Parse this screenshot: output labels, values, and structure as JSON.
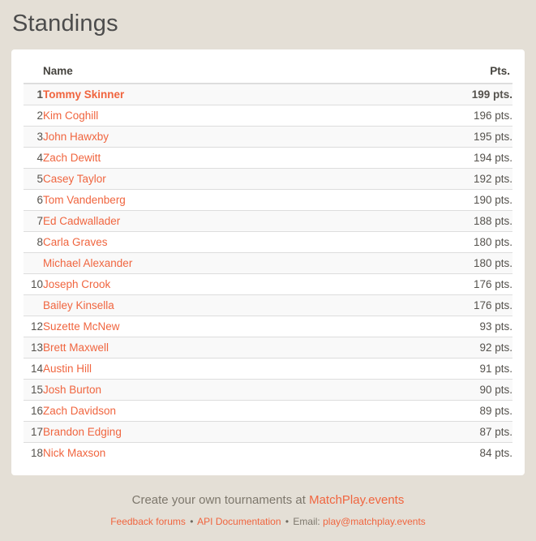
{
  "page": {
    "title": "Standings",
    "background_color": "#e4dfd6",
    "accent_color": "#f0653f"
  },
  "table": {
    "headers": {
      "name": "Name",
      "pts": "Pts."
    },
    "rows": [
      {
        "rank": "1",
        "name": "Tommy Skinner",
        "pts": "199 pts.",
        "bold": true
      },
      {
        "rank": "2",
        "name": "Kim Coghill",
        "pts": "196 pts."
      },
      {
        "rank": "3",
        "name": "John Hawxby",
        "pts": "195 pts."
      },
      {
        "rank": "4",
        "name": "Zach Dewitt",
        "pts": "194 pts."
      },
      {
        "rank": "5",
        "name": "Casey Taylor",
        "pts": "192 pts."
      },
      {
        "rank": "6",
        "name": "Tom Vandenberg",
        "pts": "190 pts."
      },
      {
        "rank": "7",
        "name": "Ed Cadwallader",
        "pts": "188 pts."
      },
      {
        "rank": "8",
        "name": "Carla Graves",
        "pts": "180 pts."
      },
      {
        "rank": "",
        "name": "Michael Alexander",
        "pts": "180 pts."
      },
      {
        "rank": "10",
        "name": "Joseph Crook",
        "pts": "176 pts."
      },
      {
        "rank": "",
        "name": "Bailey Kinsella",
        "pts": "176 pts."
      },
      {
        "rank": "12",
        "name": "Suzette McNew",
        "pts": "93 pts."
      },
      {
        "rank": "13",
        "name": "Brett Maxwell",
        "pts": "92 pts."
      },
      {
        "rank": "14",
        "name": "Austin Hill",
        "pts": "91 pts."
      },
      {
        "rank": "15",
        "name": "Josh Burton",
        "pts": "90 pts."
      },
      {
        "rank": "16",
        "name": "Zach Davidson",
        "pts": "89 pts."
      },
      {
        "rank": "17",
        "name": "Brandon Edging",
        "pts": "87 pts."
      },
      {
        "rank": "18",
        "name": "Nick Maxson",
        "pts": "84 pts."
      }
    ]
  },
  "footer": {
    "tagline_prefix": "Create your own tournaments at",
    "tagline_link": "MatchPlay.events",
    "separator": "•",
    "links": [
      "Feedback forums",
      "API Documentation"
    ],
    "email_label": "Email:",
    "email_link": "play@matchplay.events"
  }
}
